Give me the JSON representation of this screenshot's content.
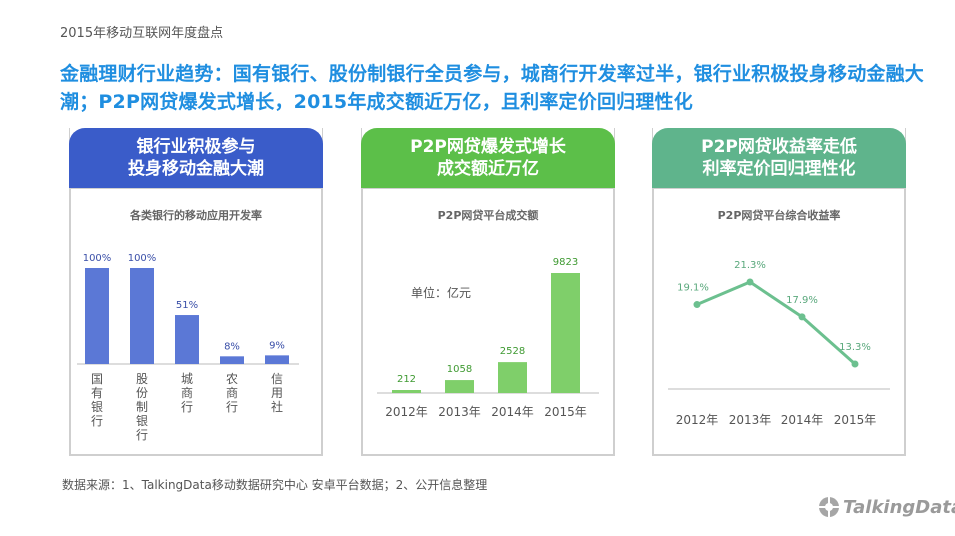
{
  "report_label": "2015年移动互联网年度盘点",
  "headline": "金融理财行业趋势：国有银行、股份制银行全员参与，城商行开发率过半，银行业积极投身移动金融大潮；P2P网贷爆发式增长，2015年成交额近万亿，且利率定价回归理性化",
  "panels": [
    {
      "head_line1": "银行业积极参与",
      "head_line2": "投身移动金融大潮",
      "color": "#3a5cc9"
    },
    {
      "head_line1": "P2P网贷爆发式增长",
      "head_line2": "成交额近万亿",
      "color": "#5cbf49"
    },
    {
      "head_line1": "P2P网贷收益率走低",
      "head_line2": "利率定价回归理性化",
      "color": "#5fb48c"
    }
  ],
  "chart_data": [
    {
      "type": "bar",
      "title": "各类银行的移动应用开发率",
      "categories": [
        "国有银行",
        "股份制银行",
        "城商行",
        "农商行",
        "信用社"
      ],
      "values": [
        100,
        100,
        51,
        8,
        9
      ],
      "value_labels": [
        "100%",
        "100%",
        "51%",
        "8%",
        "9%"
      ],
      "ylim": [
        0,
        100
      ],
      "color": "#5b78d6",
      "label_color": "#3a4fa8"
    },
    {
      "type": "bar",
      "title": "P2P网贷平台成交额",
      "unit_label": "单位：亿元",
      "categories": [
        "2012年",
        "2013年",
        "2014年",
        "2015年"
      ],
      "values": [
        212,
        1058,
        2528,
        9823
      ],
      "value_labels": [
        "212",
        "1058",
        "2528",
        "9823"
      ],
      "ylim": [
        0,
        9823
      ],
      "color": "#7fcf6a",
      "label_color": "#3f9a32"
    },
    {
      "type": "line",
      "title": "P2P网贷平台综合收益率",
      "categories": [
        "2012年",
        "2013年",
        "2014年",
        "2015年"
      ],
      "values": [
        19.1,
        21.3,
        17.9,
        13.3
      ],
      "value_labels": [
        "19.1%",
        "21.3%",
        "17.9%",
        "13.3%"
      ],
      "ylim": [
        13.3,
        21.3
      ],
      "color": "#6cc08f",
      "label_color": "#5aa87c"
    }
  ],
  "source": "数据来源：1、TalkingData移动数据研究中心 安卓平台数据；2、公开信息整理",
  "logo_text": "TalkingData"
}
